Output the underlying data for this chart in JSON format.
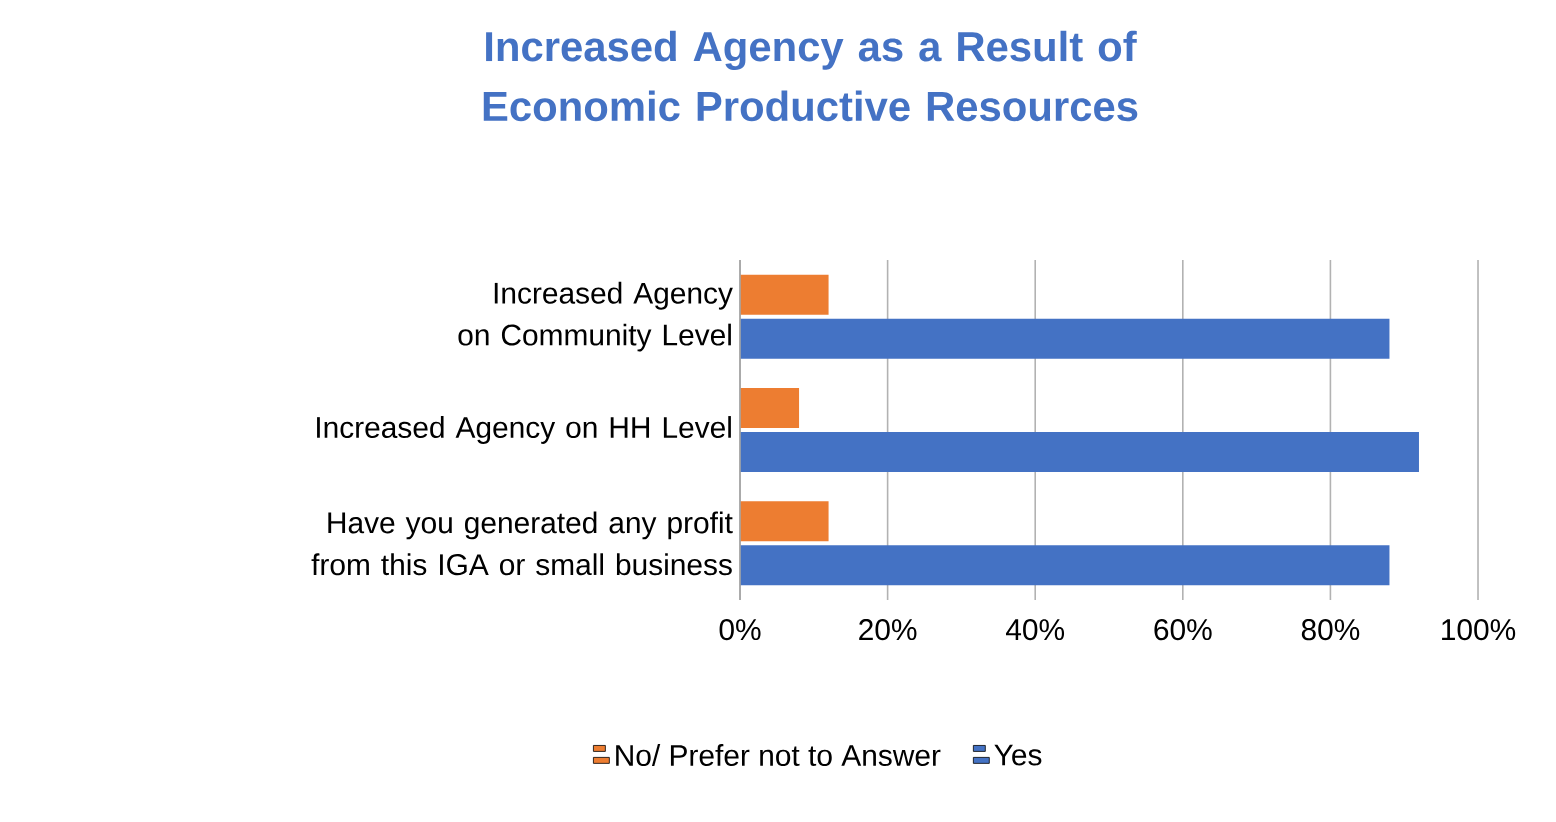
{
  "chart_data": {
    "type": "bar",
    "orientation": "horizontal",
    "title": "Increased Agency as a Result of Economic Productive Resources",
    "categories": [
      "Increased Agency on Community Level",
      "Increased Agency on HH Level",
      "Have you generated any profit from this IGA or small business"
    ],
    "series": [
      {
        "name": "No/ Prefer not to Answer",
        "color": "#ed7d31",
        "values": [
          12,
          8,
          12
        ]
      },
      {
        "name": "Yes",
        "color": "#4472c4",
        "values": [
          88,
          92,
          88
        ]
      }
    ],
    "xlim": [
      0,
      100
    ],
    "xticks": [
      {
        "value": 0,
        "label": "0%"
      },
      {
        "value": 20,
        "label": "20%"
      },
      {
        "value": 40,
        "label": "40%"
      },
      {
        "value": 60,
        "label": "60%"
      },
      {
        "value": 80,
        "label": "80%"
      },
      {
        "value": 100,
        "label": "100%"
      }
    ],
    "grid": "x",
    "legend": "bottom"
  }
}
